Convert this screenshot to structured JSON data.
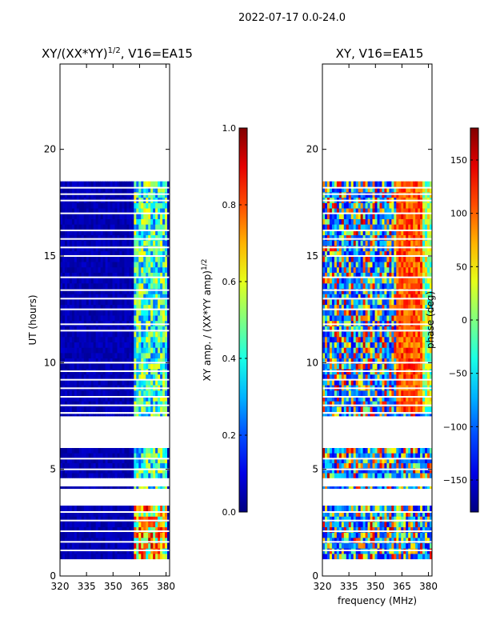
{
  "figure_title": "2022-07-17 0.0-24.0",
  "chart_data": [
    {
      "type": "heatmap",
      "title_main": "XY/(XX*YY)",
      "title_sup": "1/2",
      "title_rest": ", V16=EA15",
      "xlabel": "",
      "ylabel": "UT (hours)",
      "xlim": [
        320,
        382
      ],
      "ylim": [
        0,
        24
      ],
      "xticks": [
        320,
        335,
        350,
        365,
        380
      ],
      "yticks": [
        0,
        5,
        10,
        15,
        20
      ],
      "colorbar": {
        "label_main": "XY amp. / (XX*YY amp)",
        "label_sup": "1/2",
        "range": [
          0.0,
          1.0
        ],
        "ticks": [
          "0.0",
          "0.2",
          "0.4",
          "0.6",
          "0.8",
          "1.0"
        ],
        "colormap": "jet"
      }
    },
    {
      "type": "heatmap",
      "title_main": "XY, V16=EA15",
      "xlabel": "frequency (MHz)",
      "ylabel": "",
      "xlim": [
        320,
        382
      ],
      "ylim": [
        0,
        24
      ],
      "xticks": [
        320,
        335,
        350,
        365,
        380
      ],
      "yticks": [
        0,
        5,
        10,
        15,
        20
      ],
      "colorbar": {
        "label_main": "phase (deg)",
        "range": [
          -180,
          180
        ],
        "ticks": [
          "150",
          "100",
          "50",
          "0",
          "−50",
          "−100",
          "−150"
        ],
        "tick_values": [
          150,
          100,
          50,
          0,
          -50,
          -100,
          -150
        ],
        "colormap": "jet"
      }
    }
  ],
  "observation": {
    "data_blocks_hours": [
      [
        0.8,
        3.3
      ],
      [
        4.1,
        4.2
      ],
      [
        4.6,
        6.0
      ],
      [
        7.5,
        7.6
      ],
      [
        7.7,
        18.5
      ]
    ],
    "gap_lines_hours": [
      1.2,
      1.6,
      2.1,
      2.6,
      3.0,
      5.0,
      5.5,
      8.0,
      8.4,
      8.8,
      9.2,
      9.6,
      10.0,
      11.5,
      11.8,
      12.5,
      13.0,
      13.4,
      14.0,
      15.0,
      15.4,
      15.8,
      16.2,
      17.0,
      17.6,
      17.9,
      18.2
    ]
  }
}
